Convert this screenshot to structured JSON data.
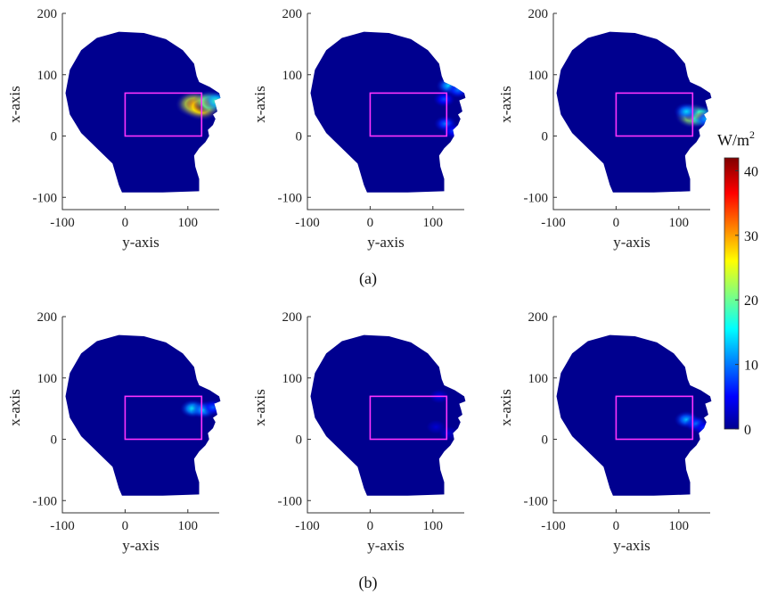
{
  "captions": [
    "(a)",
    "(b)"
  ],
  "colorbar": {
    "unit_base": "W/m",
    "unit_exp": "2",
    "min": 0,
    "max": 42,
    "ticks": [
      0,
      10,
      20,
      30,
      40
    ],
    "stops": [
      "#00008f",
      "#0000ff",
      "#00ffff",
      "#ffff00",
      "#ff0000",
      "#800000"
    ]
  },
  "colors": {
    "head_fill": "#00008f",
    "box_stroke": "#ff33ff"
  },
  "chart_data": [
    {
      "type": "heatmap",
      "panel": "a1",
      "xlabel": "y-axis",
      "ylabel": "x-axis",
      "xlim": [
        -100,
        150
      ],
      "ylim": [
        -120,
        200
      ],
      "xticks": [
        -100,
        0,
        100
      ],
      "yticks": [
        -100,
        0,
        100,
        200
      ],
      "rectangle": {
        "x0": 0,
        "x1": 122,
        "y0": 0,
        "y1": 70
      },
      "hotspots": [
        {
          "x": 110,
          "y": 52,
          "value": 38
        },
        {
          "x": 122,
          "y": 48,
          "value": 42
        },
        {
          "x": 135,
          "y": 55,
          "value": 30
        },
        {
          "x": 145,
          "y": 57,
          "value": 18
        }
      ]
    },
    {
      "type": "heatmap",
      "panel": "a2",
      "xlabel": "y-axis",
      "ylabel": "x-axis",
      "xlim": [
        -100,
        150
      ],
      "ylim": [
        -120,
        200
      ],
      "xticks": [
        -100,
        0,
        100
      ],
      "yticks": [
        -100,
        0,
        100,
        200
      ],
      "rectangle": {
        "x0": 0,
        "x1": 122,
        "y0": 0,
        "y1": 70
      },
      "hotspots": [
        {
          "x": 125,
          "y": 82,
          "value": 14
        },
        {
          "x": 140,
          "y": 75,
          "value": 10
        },
        {
          "x": 118,
          "y": 60,
          "value": 8
        },
        {
          "x": 120,
          "y": 20,
          "value": 10
        },
        {
          "x": 132,
          "y": 8,
          "value": 7
        }
      ]
    },
    {
      "type": "heatmap",
      "panel": "a3",
      "xlabel": "y-axis",
      "ylabel": "x-axis",
      "xlim": [
        -100,
        150
      ],
      "ylim": [
        -120,
        200
      ],
      "xticks": [
        -100,
        0,
        100
      ],
      "yticks": [
        -100,
        0,
        100,
        200
      ],
      "rectangle": {
        "x0": 0,
        "x1": 122,
        "y0": 0,
        "y1": 70
      },
      "hotspots": [
        {
          "x": 122,
          "y": 33,
          "value": 34
        },
        {
          "x": 135,
          "y": 32,
          "value": 26
        },
        {
          "x": 112,
          "y": 40,
          "value": 14
        },
        {
          "x": 143,
          "y": 28,
          "value": 12
        }
      ]
    },
    {
      "type": "heatmap",
      "panel": "b1",
      "xlabel": "y-axis",
      "ylabel": "x-axis",
      "xlim": [
        -100,
        150
      ],
      "ylim": [
        -120,
        200
      ],
      "xticks": [
        -100,
        0,
        100
      ],
      "yticks": [
        -100,
        0,
        100,
        200
      ],
      "rectangle": {
        "x0": 0,
        "x1": 122,
        "y0": 0,
        "y1": 70
      },
      "hotspots": [
        {
          "x": 108,
          "y": 50,
          "value": 16
        },
        {
          "x": 125,
          "y": 48,
          "value": 14
        },
        {
          "x": 140,
          "y": 52,
          "value": 9
        }
      ]
    },
    {
      "type": "heatmap",
      "panel": "b2",
      "xlabel": "y-axis",
      "ylabel": "x-axis",
      "xlim": [
        -100,
        150
      ],
      "ylim": [
        -120,
        200
      ],
      "xticks": [
        -100,
        0,
        100
      ],
      "yticks": [
        -100,
        0,
        100,
        200
      ],
      "rectangle": {
        "x0": 0,
        "x1": 122,
        "y0": 0,
        "y1": 70
      },
      "hotspots": [
        {
          "x": 110,
          "y": 70,
          "value": 4
        },
        {
          "x": 105,
          "y": 20,
          "value": 3
        },
        {
          "x": 125,
          "y": 10,
          "value": 3
        }
      ]
    },
    {
      "type": "heatmap",
      "panel": "b3",
      "xlabel": "y-axis",
      "ylabel": "x-axis",
      "xlim": [
        -100,
        150
      ],
      "ylim": [
        -120,
        200
      ],
      "xticks": [
        -100,
        0,
        100
      ],
      "yticks": [
        -100,
        0,
        100,
        200
      ],
      "rectangle": {
        "x0": 0,
        "x1": 122,
        "y0": 0,
        "y1": 70
      },
      "hotspots": [
        {
          "x": 112,
          "y": 32,
          "value": 13
        },
        {
          "x": 128,
          "y": 25,
          "value": 10
        },
        {
          "x": 140,
          "y": 18,
          "value": 7
        }
      ]
    }
  ]
}
